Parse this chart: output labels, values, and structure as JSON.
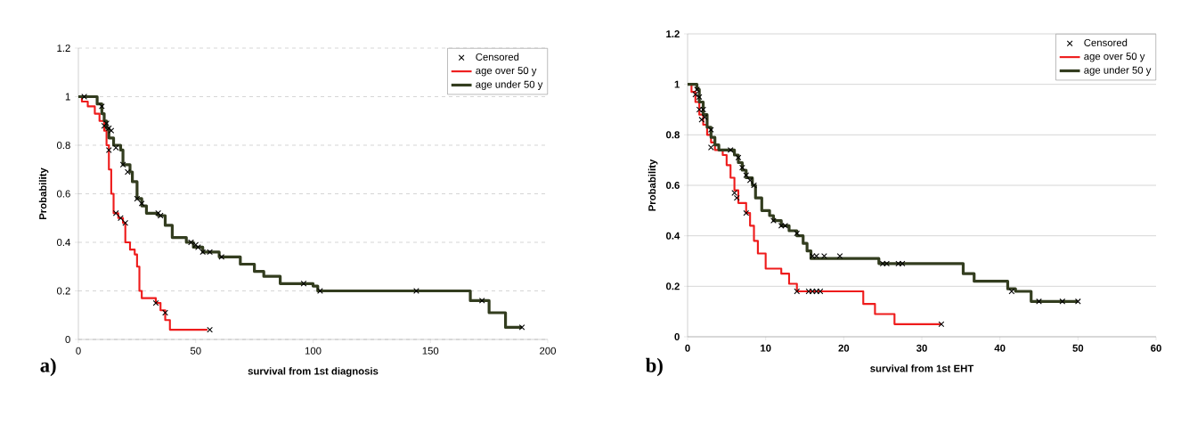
{
  "chart_data": [
    {
      "type": "step",
      "xlabel": "survival from 1st diagnosis",
      "ylabel": "Probability",
      "annotations": [
        "a)"
      ],
      "xlim": [
        0,
        200
      ],
      "ylim": [
        0,
        1.2
      ],
      "xticks": [
        0,
        50,
        100,
        150,
        200
      ],
      "yticks": [
        0,
        0.2,
        0.4,
        0.6,
        0.8,
        1,
        1.2
      ],
      "grid": "y",
      "legend": "top right",
      "series": [
        {
          "name": "Censored",
          "type": "scatter",
          "marker": "cross",
          "color": "#000000",
          "x": [
            2.5,
            10,
            11,
            12,
            13,
            14,
            16,
            19,
            21,
            25,
            27,
            34,
            35,
            48,
            50,
            51,
            53,
            56,
            61,
            96,
            103,
            144,
            172,
            189,
            13,
            16,
            18,
            20,
            33,
            37,
            56
          ],
          "values": [
            1.0,
            0.96,
            0.88,
            0.89,
            0.87,
            0.86,
            0.79,
            0.72,
            0.69,
            0.58,
            0.56,
            0.52,
            0.51,
            0.4,
            0.39,
            0.38,
            0.36,
            0.36,
            0.34,
            0.23,
            0.2,
            0.2,
            0.16,
            0.05,
            0.78,
            0.52,
            0.5,
            0.48,
            0.15,
            0.11,
            0.04
          ]
        },
        {
          "name": "age over 50 y",
          "color": "#ee1c1c",
          "x": [
            0,
            1.5,
            4,
            7,
            9,
            11,
            12,
            13,
            14,
            15,
            17,
            19,
            20,
            22,
            24,
            25,
            26,
            27,
            33,
            35,
            37,
            39,
            55
          ],
          "values": [
            1,
            0.98,
            0.96,
            0.93,
            0.9,
            0.86,
            0.8,
            0.7,
            0.6,
            0.52,
            0.5,
            0.48,
            0.4,
            0.37,
            0.35,
            0.3,
            0.2,
            0.17,
            0.15,
            0.12,
            0.08,
            0.04,
            0.04
          ]
        },
        {
          "name": "age under 50 y",
          "color": "#333d1f",
          "x": [
            0,
            8,
            10,
            11,
            12,
            13,
            15,
            18,
            19,
            22,
            23,
            25,
            27,
            29,
            34,
            37,
            40,
            46,
            49,
            53,
            60,
            69,
            75,
            79,
            86,
            100,
            102,
            167,
            175,
            182,
            189
          ],
          "values": [
            1,
            0.97,
            0.93,
            0.9,
            0.87,
            0.83,
            0.8,
            0.78,
            0.72,
            0.69,
            0.65,
            0.58,
            0.55,
            0.52,
            0.51,
            0.47,
            0.42,
            0.4,
            0.38,
            0.36,
            0.34,
            0.31,
            0.28,
            0.26,
            0.23,
            0.22,
            0.2,
            0.16,
            0.11,
            0.05,
            0.05
          ]
        }
      ]
    },
    {
      "type": "step",
      "xlabel": "**survival from 1st** EHT",
      "ylabel": "Probability",
      "annotations": [
        "b)"
      ],
      "xlim": [
        0,
        60
      ],
      "ylim": [
        0,
        1.2
      ],
      "xticks": [
        0,
        10,
        20,
        30,
        40,
        50,
        60
      ],
      "yticks": [
        0,
        0.2,
        0.4,
        0.6,
        0.8,
        1,
        1.2
      ],
      "grid": "y",
      "legend": "top right",
      "series": [
        {
          "name": "Censored",
          "type": "scatter",
          "marker": "cross",
          "color": "#000000",
          "x": [
            1.2,
            1.5,
            2,
            2.2,
            3,
            5.5,
            6.5,
            7,
            7.5,
            8,
            8.5,
            11,
            12,
            12.5,
            14,
            16,
            16.5,
            17.5,
            19.5,
            25,
            25.5,
            27,
            27.5,
            41.5,
            45,
            48,
            50,
            1,
            1.5,
            1.8,
            3,
            6,
            6.3,
            7.5,
            14,
            15.5,
            16,
            16.5,
            17,
            32.5
          ],
          "values": [
            0.98,
            0.95,
            0.9,
            0.87,
            0.82,
            0.74,
            0.71,
            0.67,
            0.64,
            0.62,
            0.6,
            0.46,
            0.44,
            0.44,
            0.41,
            0.32,
            0.32,
            0.32,
            0.32,
            0.29,
            0.29,
            0.29,
            0.29,
            0.18,
            0.14,
            0.14,
            0.14,
            0.96,
            0.9,
            0.86,
            0.75,
            0.57,
            0.55,
            0.49,
            0.18,
            0.18,
            0.18,
            0.18,
            0.18,
            0.05
          ]
        },
        {
          "name": "age over 50 y",
          "color": "#ee1c1c",
          "x": [
            0,
            0.5,
            1,
            1.5,
            2,
            2.5,
            3,
            3.5,
            4.5,
            5,
            5.5,
            6,
            6.5,
            7.5,
            8,
            8.5,
            9,
            10,
            12,
            13,
            14,
            22.5,
            24,
            26.5,
            32.5
          ],
          "values": [
            1,
            0.97,
            0.93,
            0.88,
            0.84,
            0.8,
            0.77,
            0.74,
            0.72,
            0.68,
            0.63,
            0.58,
            0.53,
            0.49,
            0.44,
            0.38,
            0.33,
            0.27,
            0.25,
            0.21,
            0.18,
            0.13,
            0.09,
            0.05,
            0.05
          ]
        },
        {
          "name": "age under 50 y",
          "color": "#333d1f",
          "x": [
            0,
            1.2,
            1.5,
            2,
            2.5,
            3,
            3.5,
            4,
            6,
            6.5,
            7,
            7.5,
            8.3,
            8.7,
            9.5,
            10.5,
            11,
            12,
            13,
            14,
            14.8,
            15.3,
            15.8,
            24.5,
            35.3,
            36.7,
            41,
            42,
            44,
            50
          ],
          "values": [
            1,
            0.98,
            0.93,
            0.88,
            0.83,
            0.79,
            0.76,
            0.74,
            0.72,
            0.69,
            0.66,
            0.63,
            0.6,
            0.55,
            0.5,
            0.48,
            0.46,
            0.44,
            0.42,
            0.4,
            0.37,
            0.34,
            0.31,
            0.29,
            0.25,
            0.22,
            0.19,
            0.18,
            0.14,
            0.14
          ]
        }
      ]
    }
  ]
}
